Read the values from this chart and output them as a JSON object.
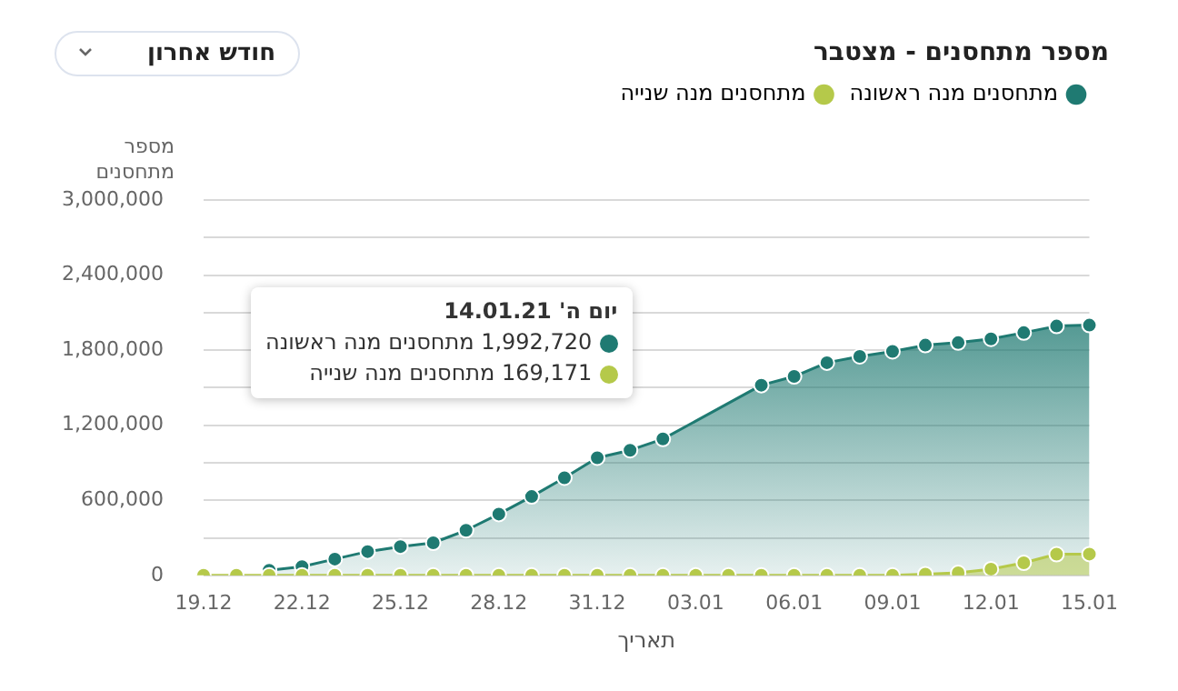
{
  "chart_data": {
    "type": "area",
    "title": "מספר מתחסנים - מצטבר",
    "xlabel": "תאריך",
    "ylabel": "מספר מתחסנים",
    "annotations": [
      "חודש אחרון",
      "יום ה' 14.01.21",
      "1,992,720 מתחסנים מנה ראשונה",
      "169,171 מתחסנים מנה שנייה"
    ],
    "categories": [
      "19.12",
      null,
      null,
      "22.12",
      null,
      null,
      "25.12",
      null,
      null,
      "28.12",
      null,
      null,
      "31.12",
      null,
      null,
      "03.01",
      null,
      null,
      "06.01",
      null,
      null,
      "09.01",
      null,
      null,
      "12.01",
      null,
      null,
      "15.01"
    ],
    "series": [
      {
        "name": "מתחסנים מנה ראשונה",
        "color": "#1f7a72",
        "values": [
          null,
          null,
          40000,
          70000,
          130000,
          190000,
          230000,
          260000,
          360000,
          490000,
          630000,
          780000,
          940000,
          1000000,
          1090000,
          null,
          null,
          1520000,
          1590000,
          1700000,
          1750000,
          1790000,
          1840000,
          1860000,
          1890000,
          1940000,
          1992720,
          2000000
        ]
      },
      {
        "name": "מתחסנים מנה שנייה",
        "color": "#b5c94a",
        "values": [
          0,
          0,
          0,
          0,
          0,
          0,
          0,
          0,
          0,
          0,
          0,
          0,
          0,
          0,
          0,
          0,
          0,
          0,
          0,
          0,
          0,
          0,
          10000,
          20000,
          50000,
          100000,
          169171,
          170000
        ]
      }
    ],
    "ylim": [
      0,
      3000000
    ],
    "yticks": [
      {
        "value": 0,
        "label": "0"
      },
      {
        "value": 300000,
        "label": null
      },
      {
        "value": 600000,
        "label": "600,000"
      },
      {
        "value": 900000,
        "label": null
      },
      {
        "value": 1200000,
        "label": "1,200,000"
      },
      {
        "value": 1500000,
        "label": null
      },
      {
        "value": 1800000,
        "label": "1,800,000"
      },
      {
        "value": 2100000,
        "label": null
      },
      {
        "value": 2400000,
        "label": "2,400,000"
      },
      {
        "value": 2700000,
        "label": null
      },
      {
        "value": 3000000,
        "label": "3,000,000"
      }
    ],
    "grid": "y",
    "legend": "top right",
    "marker": "circle",
    "line_style": "solid"
  }
}
